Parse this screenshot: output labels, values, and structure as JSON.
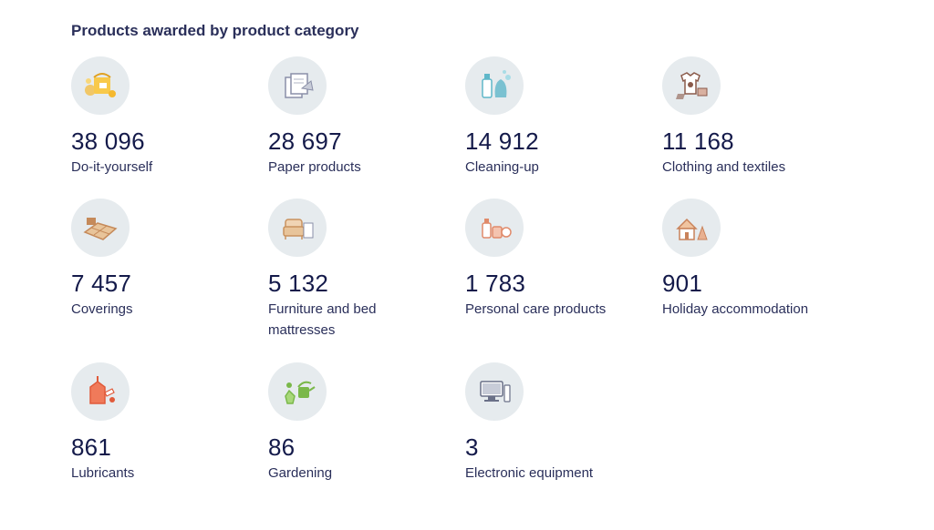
{
  "section": {
    "title": "Products awarded by product category"
  },
  "categories": [
    {
      "count": "38 096",
      "label": "Do-it-yourself",
      "icon": "paint-bucket-icon",
      "accent": "#f5b82e"
    },
    {
      "count": "28 697",
      "label": "Paper products",
      "icon": "paper-stack-icon",
      "accent": "#8a8fa8"
    },
    {
      "count": "14 912",
      "label": "Cleaning-up",
      "icon": "cleaning-spray-icon",
      "accent": "#5fb7c9"
    },
    {
      "count": "11 168",
      "label": "Clothing and textiles",
      "icon": "clothing-icon",
      "accent": "#8a5a4a"
    },
    {
      "count": "7 457",
      "label": "Coverings",
      "icon": "floor-tiles-icon",
      "accent": "#c58a5a"
    },
    {
      "count": "5 132",
      "label": "Furniture and bed mattresses",
      "icon": "armchair-icon",
      "accent": "#c9925e"
    },
    {
      "count": "1 783",
      "label": "Personal care products",
      "icon": "cosmetics-icon",
      "accent": "#e08a6a"
    },
    {
      "count": "901",
      "label": "Holiday accommodation",
      "icon": "holiday-house-icon",
      "accent": "#c9825a"
    },
    {
      "count": "861",
      "label": "Lubricants",
      "icon": "oil-can-icon",
      "accent": "#e05a3a"
    },
    {
      "count": "86",
      "label": "Gardening",
      "icon": "watering-can-icon",
      "accent": "#7ab84a"
    },
    {
      "count": "3",
      "label": "Electronic equipment",
      "icon": "computer-icon",
      "accent": "#8a8fa8"
    }
  ]
}
